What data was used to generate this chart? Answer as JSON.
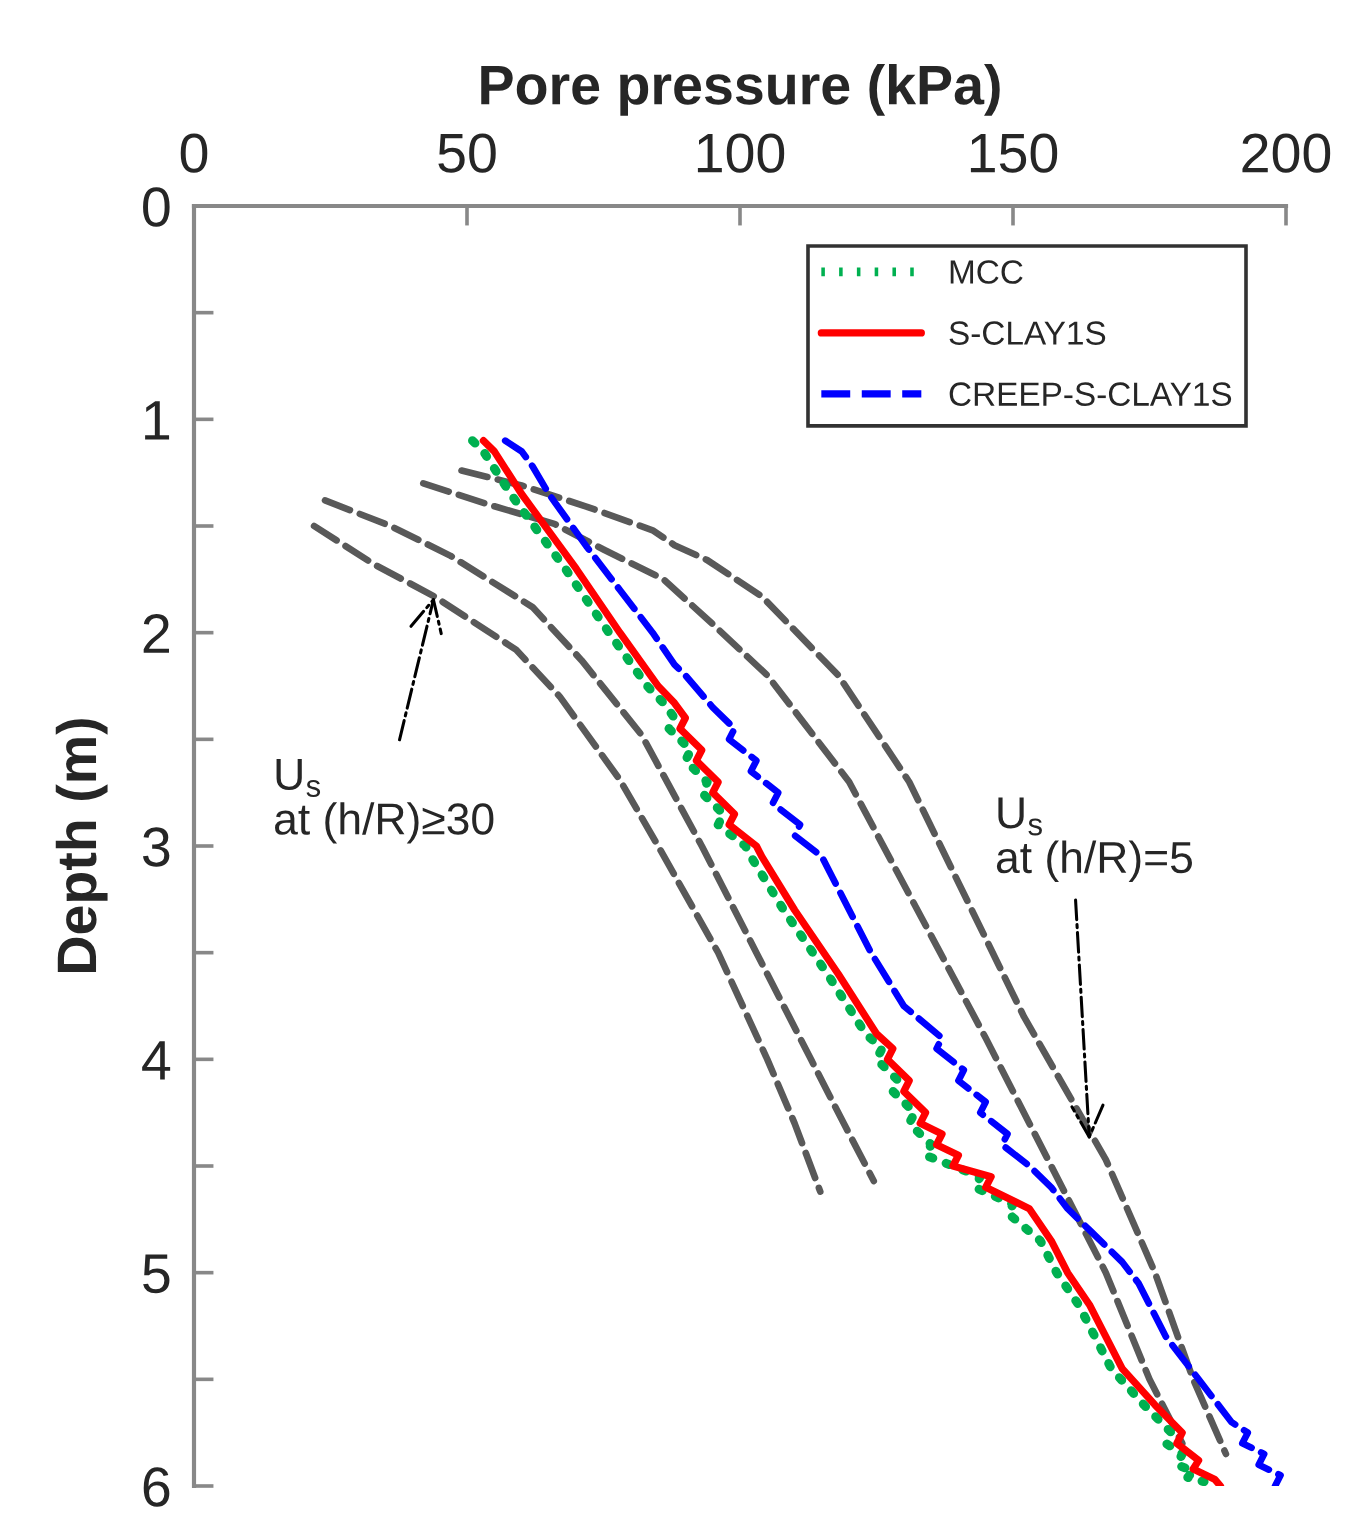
{
  "chart_data": {
    "type": "line",
    "xlabel": "Pore pressure (kPa)",
    "ylabel": "Depth (m)",
    "xlim": [
      0,
      200
    ],
    "xticks": [
      0,
      50,
      100,
      150,
      200
    ],
    "ylim": [
      6,
      0
    ],
    "yticks": [
      0,
      {
        "value": 0.5,
        "label": null
      },
      1,
      {
        "value": 1.5,
        "label": null
      },
      2,
      {
        "value": 2.5,
        "label": null
      },
      3,
      {
        "value": 3.5,
        "label": null
      },
      4,
      {
        "value": 4.5,
        "label": null
      },
      5,
      {
        "value": 5.5,
        "label": null
      },
      6
    ],
    "legend": "top right",
    "grid": false,
    "series": [
      {
        "name": "MCC",
        "color": "#00b050",
        "line_style": "dotted",
        "x": [
          51,
          53,
          58,
          68,
          76,
          83,
          86,
          88,
          87,
          91,
          90,
          94,
          93,
          97,
          96,
          101,
          102,
          108,
          116,
          123,
          126,
          125,
          129,
          128,
          132,
          131,
          135,
          134,
          144,
          143,
          150,
          149,
          155,
          158,
          162,
          165,
          168,
          174,
          179,
          178,
          181,
          180,
          183,
          182,
          185
        ],
        "values": [
          1.1,
          1.15,
          1.35,
          1.7,
          2.0,
          2.25,
          2.33,
          2.4,
          2.45,
          2.55,
          2.6,
          2.7,
          2.75,
          2.85,
          2.9,
          3.0,
          3.05,
          3.3,
          3.6,
          3.88,
          3.95,
          4.0,
          4.1,
          4.15,
          4.25,
          4.3,
          4.4,
          4.45,
          4.55,
          4.6,
          4.68,
          4.72,
          4.85,
          5.0,
          5.15,
          5.3,
          5.45,
          5.62,
          5.75,
          5.8,
          5.85,
          5.9,
          5.93,
          5.96,
          5.98
        ]
      },
      {
        "name": "S-CLAY1S",
        "color": "#ff0000",
        "line_style": "solid",
        "x": [
          53,
          55,
          60,
          70,
          78,
          85,
          88,
          90,
          89,
          93,
          92,
          96,
          95,
          99,
          98,
          103,
          104,
          110,
          118,
          125,
          128,
          127,
          131,
          130,
          134,
          133,
          137,
          136,
          140,
          139,
          146,
          145,
          153,
          157,
          160,
          164,
          167,
          170,
          176,
          181,
          180,
          184,
          183,
          187,
          188
        ],
        "values": [
          1.1,
          1.15,
          1.35,
          1.7,
          2.0,
          2.25,
          2.33,
          2.4,
          2.45,
          2.55,
          2.6,
          2.7,
          2.75,
          2.85,
          2.9,
          3.0,
          3.05,
          3.3,
          3.6,
          3.88,
          3.95,
          4.0,
          4.1,
          4.15,
          4.25,
          4.3,
          4.35,
          4.4,
          4.45,
          4.5,
          4.55,
          4.6,
          4.7,
          4.85,
          5.0,
          5.15,
          5.3,
          5.45,
          5.62,
          5.75,
          5.8,
          5.88,
          5.92,
          5.97,
          6.0
        ]
      },
      {
        "name": "CREEP-S-CLAY1S",
        "color": "#0000ff",
        "line_style": "dashed",
        "x": [
          57,
          60,
          62,
          65,
          72,
          78,
          84,
          88,
          90,
          95,
          99,
          98,
          103,
          102,
          107,
          106,
          111,
          110,
          115,
          118,
          124,
          130,
          137,
          136,
          141,
          140,
          145,
          144,
          149,
          148,
          153,
          157,
          160,
          164,
          170,
          173,
          178,
          184,
          190,
          193,
          192,
          196,
          195,
          199,
          198
        ],
        "values": [
          1.1,
          1.15,
          1.22,
          1.35,
          1.6,
          1.8,
          2.0,
          2.15,
          2.2,
          2.35,
          2.45,
          2.5,
          2.6,
          2.65,
          2.75,
          2.8,
          2.9,
          2.95,
          3.05,
          3.2,
          3.5,
          3.75,
          3.9,
          3.95,
          4.05,
          4.1,
          4.2,
          4.25,
          4.35,
          4.4,
          4.5,
          4.6,
          4.7,
          4.8,
          4.95,
          5.05,
          5.3,
          5.5,
          5.7,
          5.75,
          5.8,
          5.85,
          5.9,
          5.95,
          6.0
        ]
      },
      {
        "color": "#595959",
        "line_style": "dashed",
        "x": [
          24,
          36,
          47,
          62,
          71,
          82,
          93,
          103,
          113,
          119,
          124.5
        ],
        "values": [
          1.38,
          1.5,
          1.64,
          1.88,
          2.13,
          2.48,
          3.0,
          3.5,
          4.0,
          4.3,
          4.57
        ]
      },
      {
        "color": "#595959",
        "line_style": "dashed",
        "x": [
          22,
          33,
          44,
          59,
          67,
          78,
          85,
          96,
          105,
          110,
          114.7
        ],
        "values": [
          1.5,
          1.68,
          1.83,
          2.08,
          2.3,
          2.69,
          3.0,
          3.5,
          4.0,
          4.3,
          4.62
        ]
      },
      {
        "color": "#595959",
        "line_style": "dashed",
        "x": [
          42,
          54,
          66,
          75,
          86,
          95,
          105,
          120,
          145,
          157,
          167,
          175,
          181
        ],
        "values": [
          1.3,
          1.4,
          1.49,
          1.61,
          1.75,
          1.96,
          2.2,
          2.7,
          3.9,
          4.5,
          5.0,
          5.5,
          5.8
        ]
      },
      {
        "color": "#595959",
        "line_style": "dashed",
        "x": [
          49,
          60,
          72,
          84,
          88,
          94,
          104,
          118,
          131,
          152,
          167,
          176,
          183,
          189
        ],
        "values": [
          1.24,
          1.31,
          1.41,
          1.52,
          1.59,
          1.66,
          1.83,
          2.2,
          2.7,
          3.8,
          4.47,
          5.0,
          5.5,
          5.85
        ]
      }
    ],
    "annotations": [
      {
        "text": "U$_{s}$\nat (h/R)≥30",
        "x": 44,
        "y": 1.83
      },
      {
        "text": "U$_{s}$\nat (h/R)=5",
        "x": 164,
        "y": 4.38
      }
    ]
  }
}
